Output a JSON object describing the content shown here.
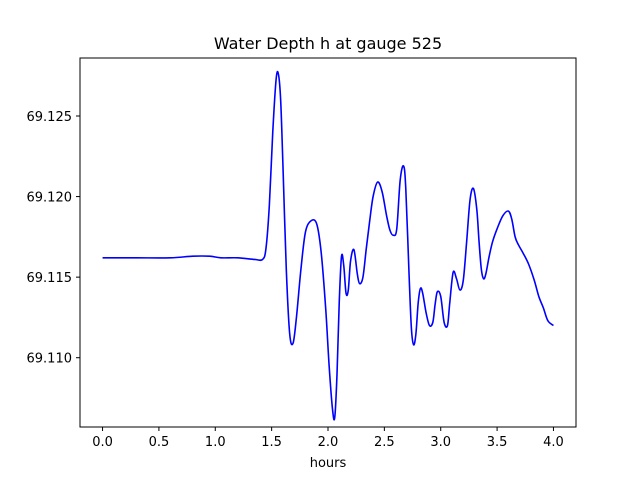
{
  "chart_data": {
    "type": "line",
    "title": "Water Depth h at gauge 525",
    "xlabel": "hours",
    "ylabel": "",
    "xlim": [
      -0.2,
      4.2
    ],
    "ylim": [
      69.1057,
      69.1286
    ],
    "xticks": [
      0.0,
      0.5,
      1.0,
      1.5,
      2.0,
      2.5,
      3.0,
      3.5,
      4.0
    ],
    "xtick_labels": [
      "0.0",
      "0.5",
      "1.0",
      "1.5",
      "2.0",
      "2.5",
      "3.0",
      "3.5",
      "4.0"
    ],
    "yticks": [
      69.11,
      69.115,
      69.12,
      69.125
    ],
    "ytick_labels": [
      "69.110",
      "69.115",
      "69.120",
      "69.125"
    ],
    "grid": false,
    "series": [
      {
        "color": "#0000ff",
        "x": [
          0.0,
          0.3,
          0.6,
          0.8,
          0.95,
          1.05,
          1.2,
          1.35,
          1.42,
          1.45,
          1.48,
          1.51,
          1.54,
          1.56,
          1.58,
          1.6,
          1.63,
          1.66,
          1.69,
          1.72,
          1.76,
          1.8,
          1.85,
          1.9,
          1.94,
          1.98,
          2.01,
          2.04,
          2.06,
          2.08,
          2.1,
          2.12,
          2.14,
          2.16,
          2.18,
          2.2,
          2.23,
          2.26,
          2.28,
          2.31,
          2.34,
          2.37,
          2.4,
          2.44,
          2.48,
          2.52,
          2.55,
          2.58,
          2.61,
          2.64,
          2.67,
          2.69,
          2.72,
          2.74,
          2.76,
          2.78,
          2.8,
          2.82,
          2.84,
          2.87,
          2.9,
          2.93,
          2.95,
          2.97,
          3.0,
          3.03,
          3.06,
          3.08,
          3.11,
          3.14,
          3.17,
          3.2,
          3.23,
          3.26,
          3.29,
          3.32,
          3.34,
          3.36,
          3.38,
          3.4,
          3.43,
          3.46,
          3.5,
          3.55,
          3.6,
          3.63,
          3.66,
          3.69,
          3.73,
          3.78,
          3.83,
          3.87,
          3.91,
          3.95,
          4.0
        ],
        "y": [
          69.1162,
          69.1162,
          69.1162,
          69.1163,
          69.1163,
          69.1162,
          69.1162,
          69.1161,
          69.1161,
          69.1168,
          69.1195,
          69.124,
          69.1273,
          69.1276,
          69.126,
          69.122,
          69.1155,
          69.1115,
          69.1109,
          69.1125,
          69.1155,
          69.1178,
          69.1185,
          69.1183,
          69.1165,
          69.113,
          69.1095,
          69.1068,
          69.1063,
          69.109,
          69.1135,
          69.1163,
          69.1157,
          69.114,
          69.1142,
          69.116,
          69.1167,
          69.1152,
          69.1146,
          69.115,
          69.1168,
          69.1185,
          69.12,
          69.1209,
          69.1203,
          69.1188,
          69.1179,
          69.1176,
          69.118,
          69.121,
          69.1219,
          69.1205,
          69.115,
          69.1118,
          69.1108,
          69.1115,
          69.1134,
          69.1143,
          69.114,
          69.1128,
          69.112,
          69.1122,
          69.1133,
          69.1141,
          69.1138,
          69.1122,
          69.112,
          69.1134,
          69.1153,
          69.1149,
          69.1142,
          69.1148,
          69.1172,
          69.1198,
          69.1205,
          69.1192,
          69.1172,
          69.1155,
          69.1149,
          69.1152,
          69.1163,
          69.1172,
          69.118,
          69.1188,
          69.1191,
          69.1186,
          69.1175,
          69.117,
          69.1165,
          69.1158,
          69.1148,
          69.1138,
          69.1131,
          69.1123,
          69.112
        ]
      }
    ]
  }
}
